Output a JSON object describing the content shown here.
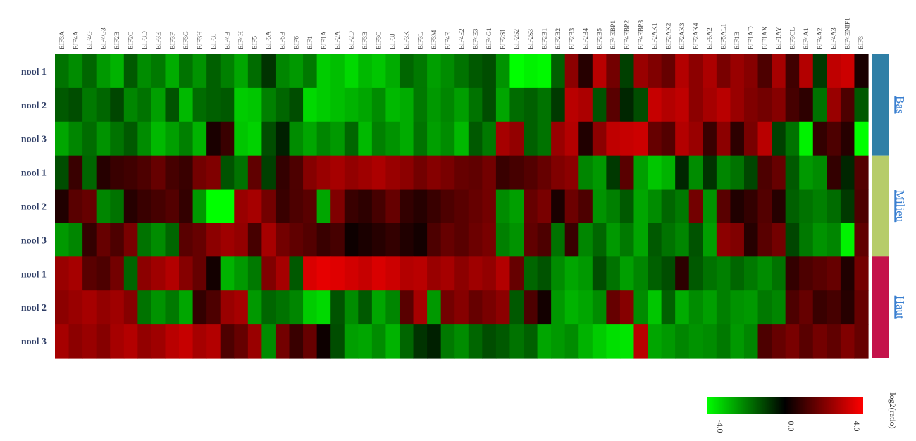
{
  "chart_data": {
    "type": "heatmap",
    "columns": [
      "EIF3A",
      "EIF4A",
      "EIF4G",
      "EIF4G3",
      "EIF2B",
      "EIF2C",
      "EIF3D",
      "EIF3E",
      "EIF3F",
      "EIF3G",
      "EIF3H",
      "EIF3I",
      "EIF4B",
      "EIF4H",
      "EIF5",
      "EIF5A",
      "EIF5B",
      "EIF6",
      "EIF1",
      "EIF1A",
      "EIF2A",
      "EIF2D",
      "EIF3B",
      "EIF3C",
      "EIF3J",
      "EIF3K",
      "EIF3L",
      "EIF3M",
      "EIF4E",
      "EIF4E2",
      "EIF4E3",
      "EIF4G1",
      "EIF2S1",
      "EIF2S2",
      "EIF2S3",
      "EIF2B1",
      "EIF2B2",
      "EIF2B3",
      "EIF2B4",
      "EIF2B5",
      "EIF4EBP1",
      "EIF4EBP2",
      "EIF4EBP3",
      "EIF2AK1",
      "EIF2AK2",
      "EIF2AK3",
      "EIF2AK4",
      "EIF5A2",
      "EIF5AL1",
      "EIF1B",
      "EIF1AD",
      "EIF1AX",
      "EIF1AY",
      "EIF3CL",
      "EIF4A1",
      "EIF4A2",
      "EIF4A3",
      "EIF4ENIF1",
      "EIF3"
    ],
    "rows": [
      "nool 1",
      "nool 2",
      "nool 3",
      "nool 1",
      "nool 2",
      "nool 3",
      "nool 1",
      "nool 2",
      "nool 3"
    ],
    "groups": [
      {
        "name": "Bas",
        "rows": [
          0,
          1,
          2
        ],
        "color": "#2f7fa6"
      },
      {
        "name": "Milieu",
        "rows": [
          3,
          4,
          5
        ],
        "color": "#b6cc6a"
      },
      {
        "name": "Haut",
        "rows": [
          6,
          7,
          8
        ],
        "color": "#c4124a"
      }
    ],
    "values": [
      [
        -1.8,
        -2.2,
        -1.6,
        -2.4,
        -2.8,
        -1.4,
        -2.2,
        -1.9,
        -2.7,
        -1.8,
        -2.3,
        -1.5,
        -2.0,
        -2.6,
        -1.7,
        -0.8,
        -2.1,
        -2.4,
        -1.9,
        -3.2,
        -3.0,
        -3.4,
        -2.9,
        -3.1,
        -2.7,
        -1.6,
        -1.9,
        -2.5,
        -2.2,
        -1.8,
        -1.4,
        -1.2,
        -2.3,
        -4.0,
        -3.8,
        -3.9,
        -1.5,
        2.2,
        0.6,
        2.9,
        1.8,
        -1.0,
        2.4,
        2.0,
        1.6,
        2.8,
        2.2,
        2.7,
        1.9,
        2.4,
        2.1,
        1.2,
        2.6,
        1.0,
        2.8,
        -0.9,
        3.0,
        3.2,
        0.4
      ],
      [
        -1.4,
        -1.2,
        -1.9,
        -1.6,
        -1.1,
        -2.1,
        -1.8,
        -2.5,
        -1.3,
        -2.9,
        -1.7,
        -1.5,
        -1.4,
        -3.2,
        -3.1,
        -2.0,
        -1.6,
        -1.2,
        -3.4,
        -3.2,
        -3.0,
        -2.8,
        -2.6,
        -2.2,
        -2.9,
        -2.7,
        -1.9,
        -2.4,
        -2.1,
        -2.5,
        -1.8,
        -1.2,
        -2.6,
        -1.7,
        -1.5,
        -1.8,
        -0.9,
        2.9,
        2.7,
        -1.3,
        1.4,
        -0.6,
        -1.2,
        3.1,
        2.8,
        3.0,
        2.2,
        2.6,
        2.9,
        2.4,
        2.0,
        1.8,
        2.1,
        1.1,
        0.7,
        -1.8,
        2.4,
        1.2,
        -1.4
      ],
      [
        -2.6,
        -2.1,
        -1.7,
        -2.3,
        -1.8,
        -1.4,
        -2.2,
        -2.9,
        -2.5,
        -2.0,
        -2.8,
        0.4,
        0.9,
        -3.1,
        -3.3,
        -1.2,
        -0.5,
        -2.2,
        -2.6,
        -2.1,
        -2.4,
        -1.6,
        -2.9,
        -2.0,
        -2.3,
        -2.7,
        -1.8,
        -2.5,
        -2.2,
        -2.9,
        -1.4,
        -1.9,
        2.6,
        2.3,
        -1.5,
        -1.8,
        2.4,
        2.8,
        0.5,
        2.2,
        3.0,
        3.1,
        3.2,
        1.6,
        1.3,
        2.8,
        2.4,
        0.9,
        2.2,
        0.7,
        1.9,
        2.9,
        -1.0,
        -1.8,
        -3.8,
        0.8,
        1.2,
        0.6,
        -4.0
      ],
      [
        -1.2,
        0.9,
        -1.6,
        0.6,
        0.9,
        1.0,
        1.2,
        1.6,
        1.1,
        0.9,
        1.8,
        2.0,
        -1.3,
        -1.8,
        1.5,
        -1.0,
        0.8,
        1.2,
        2.1,
        2.4,
        2.6,
        2.3,
        2.5,
        2.7,
        2.4,
        2.2,
        1.8,
        2.1,
        1.9,
        1.6,
        1.5,
        1.8,
        0.9,
        1.1,
        1.3,
        1.6,
        2.0,
        2.2,
        -2.1,
        -2.4,
        -0.9,
        1.4,
        -2.5,
        -3.1,
        -2.8,
        -0.6,
        -2.2,
        -0.8,
        -2.1,
        -1.8,
        -1.1,
        1.2,
        1.6,
        -1.4,
        -2.4,
        -2.2,
        0.8,
        -0.6,
        1.3
      ],
      [
        0.5,
        1.4,
        1.6,
        -2.1,
        -1.8,
        0.6,
        0.9,
        1.1,
        1.3,
        0.8,
        -2.4,
        -4.0,
        -4.0,
        2.4,
        2.6,
        1.8,
        0.9,
        1.2,
        1.4,
        -2.6,
        2.0,
        0.9,
        0.7,
        1.1,
        1.6,
        0.8,
        0.6,
        0.9,
        1.2,
        1.4,
        1.6,
        1.8,
        -2.2,
        -2.5,
        1.6,
        1.9,
        0.4,
        1.7,
        1.2,
        -2.3,
        -2.0,
        -1.4,
        -2.6,
        -2.2,
        -1.6,
        -1.9,
        1.8,
        -2.3,
        1.4,
        0.5,
        0.8,
        1.3,
        0.6,
        -1.5,
        -1.8,
        -2.0,
        -1.7,
        -0.9,
        1.2
      ],
      [
        -2.4,
        -2.1,
        0.8,
        1.6,
        1.2,
        1.9,
        -1.8,
        -2.2,
        -1.6,
        1.4,
        1.6,
        2.2,
        2.5,
        2.3,
        1.1,
        2.6,
        1.8,
        1.5,
        1.3,
        0.9,
        1.1,
        0.2,
        0.4,
        0.6,
        0.8,
        0.5,
        0.3,
        1.2,
        1.6,
        1.4,
        1.7,
        1.9,
        -2.0,
        -2.3,
        1.5,
        1.2,
        -1.8,
        0.9,
        -2.1,
        -1.6,
        -2.4,
        -1.9,
        -2.6,
        -1.4,
        -1.8,
        -2.1,
        -1.3,
        -2.5,
        2.2,
        2.0,
        0.6,
        1.4,
        1.8,
        -1.1,
        -1.9,
        -2.3,
        -2.1,
        -3.8,
        1.5
      ],
      [
        2.4,
        2.6,
        1.4,
        1.2,
        1.8,
        -1.6,
        2.2,
        2.5,
        2.8,
        2.1,
        1.6,
        0.3,
        -2.8,
        -2.4,
        -1.9,
        2.0,
        2.6,
        -1.4,
        3.4,
        3.6,
        3.5,
        3.3,
        3.1,
        3.4,
        3.2,
        2.8,
        2.9,
        2.4,
        2.6,
        2.2,
        2.5,
        2.3,
        2.8,
        1.6,
        -1.6,
        -1.3,
        -2.2,
        -2.6,
        -2.4,
        -1.2,
        -1.8,
        -2.5,
        -2.1,
        -1.5,
        -1.2,
        0.7,
        -1.4,
        -1.8,
        -2.0,
        -1.6,
        -1.9,
        -2.2,
        -1.8,
        0.8,
        1.2,
        1.4,
        1.6,
        0.5,
        1.8
      ],
      [
        2.2,
        2.4,
        2.6,
        2.3,
        2.5,
        2.1,
        -1.8,
        -2.3,
        -1.9,
        -2.6,
        0.8,
        1.2,
        2.4,
        2.6,
        -2.4,
        -1.6,
        -1.8,
        -2.1,
        -3.2,
        -3.4,
        -1.3,
        -2.2,
        -1.4,
        -2.6,
        -2.1,
        1.4,
        2.6,
        -2.4,
        1.8,
        2.1,
        1.6,
        1.9,
        2.2,
        -1.4,
        1.2,
        0.3,
        -2.4,
        -2.8,
        -2.6,
        -2.2,
        1.6,
        2.1,
        -2.2,
        -3.1,
        -1.5,
        -2.7,
        -2.2,
        -2.5,
        -2.0,
        -2.3,
        -2.4,
        -1.9,
        -2.1,
        1.2,
        1.6,
        0.9,
        1.1,
        0.6,
        1.6
      ],
      [
        2.6,
        2.2,
        2.4,
        2.1,
        2.6,
        2.8,
        2.3,
        2.5,
        2.9,
        3.1,
        2.6,
        2.8,
        1.2,
        1.6,
        2.4,
        -2.2,
        1.8,
        0.9,
        1.6,
        0.2,
        -1.2,
        -2.5,
        -2.6,
        -2.2,
        -2.8,
        -1.6,
        -0.8,
        -0.5,
        -1.9,
        -2.2,
        -1.6,
        -1.2,
        -1.4,
        -1.8,
        -1.5,
        -2.6,
        -2.4,
        -2.2,
        -2.8,
        -3.2,
        -3.5,
        -3.6,
        2.9,
        -2.6,
        -2.4,
        -2.1,
        -2.3,
        -2.2,
        -1.9,
        -2.4,
        -2.1,
        1.2,
        1.6,
        1.9,
        1.4,
        1.8,
        1.5,
        2.0,
        1.6
      ]
    ],
    "colorscale": {
      "low": "#00ff00",
      "mid": "#000000",
      "high": "#ff0000"
    },
    "range": [
      -4,
      4
    ],
    "legend": {
      "title": "log2(ratio)",
      "tick_labels": [
        "-4.0",
        "0.0",
        "4.0"
      ],
      "placement": "bottom-right"
    }
  }
}
